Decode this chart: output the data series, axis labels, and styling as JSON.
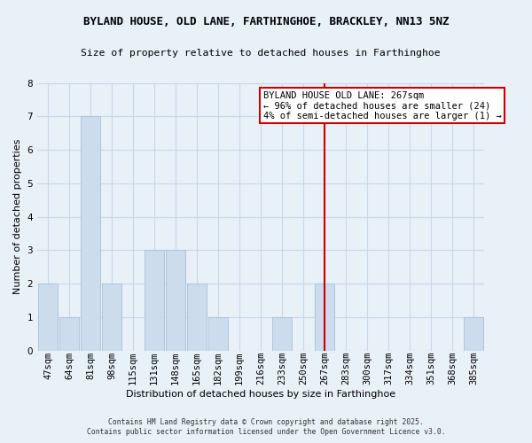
{
  "title": "BYLAND HOUSE, OLD LANE, FARTHINGHOE, BRACKLEY, NN13 5NZ",
  "subtitle": "Size of property relative to detached houses in Farthinghoe",
  "xlabel": "Distribution of detached houses by size in Farthinghoe",
  "ylabel": "Number of detached properties",
  "categories": [
    "47sqm",
    "64sqm",
    "81sqm",
    "98sqm",
    "115sqm",
    "131sqm",
    "148sqm",
    "165sqm",
    "182sqm",
    "199sqm",
    "216sqm",
    "233sqm",
    "250sqm",
    "267sqm",
    "283sqm",
    "300sqm",
    "317sqm",
    "334sqm",
    "351sqm",
    "368sqm",
    "385sqm"
  ],
  "values": [
    2,
    1,
    7,
    2,
    0,
    3,
    3,
    2,
    1,
    0,
    0,
    1,
    0,
    2,
    0,
    0,
    0,
    0,
    0,
    0,
    1
  ],
  "bar_color": "#ccdcec",
  "bar_edge_color": "#a8c0d4",
  "marker_index": 13,
  "marker_line_color": "#cc0000",
  "annotation_title": "BYLAND HOUSE OLD LANE: 267sqm",
  "annotation_line1": "← 96% of detached houses are smaller (24)",
  "annotation_line2": "4% of semi-detached houses are larger (1) →",
  "annotation_box_facecolor": "#ffffff",
  "annotation_box_edgecolor": "#cc0000",
  "ylim": [
    0,
    8
  ],
  "yticks": [
    0,
    1,
    2,
    3,
    4,
    5,
    6,
    7,
    8
  ],
  "grid_color": "#c8d8e8",
  "background_color": "#e8f0f8",
  "footer1": "Contains HM Land Registry data © Crown copyright and database right 2025.",
  "footer2": "Contains public sector information licensed under the Open Government Licence v3.0.",
  "title_fontsize": 9.0,
  "subtitle_fontsize": 8.2,
  "axis_label_fontsize": 8.0,
  "tick_fontsize": 7.5,
  "footer_fontsize": 5.8,
  "annotation_fontsize": 7.5
}
